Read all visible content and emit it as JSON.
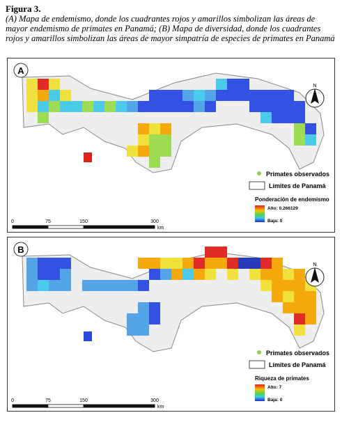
{
  "figure": {
    "label": "Figura 3.",
    "caption": "(A) Mapa de endemismo, donde los cuadrantes rojos y amarillos simbolizan las áreas de mayor endemismo de primates en Panamá; (B) Mapa de diversidad, donde los cuadrantes rojos y amarillos simbolizan las áreas de mayor simpatría de especies de primates en Panamá",
    "panels": [
      {
        "label": "A",
        "north": "N",
        "legend": {
          "observed": "Primates observados",
          "limits": "Límites de Panamá",
          "scale_title": "Ponderación de endemismo",
          "high": "Alto: 0.266129",
          "low": "Baja: 0"
        },
        "scale": [
          0,
          75,
          150,
          300
        ],
        "unit": "km"
      },
      {
        "label": "B",
        "north": "N",
        "legend": {
          "observed": "Primates observados",
          "limits": "Límites de Panamá",
          "scale_title": "Riqueza de primates",
          "high": "Alto: 7",
          "low": "Baja: 0"
        },
        "scale": [
          0,
          75,
          150,
          300
        ],
        "unit": "km"
      }
    ]
  }
}
